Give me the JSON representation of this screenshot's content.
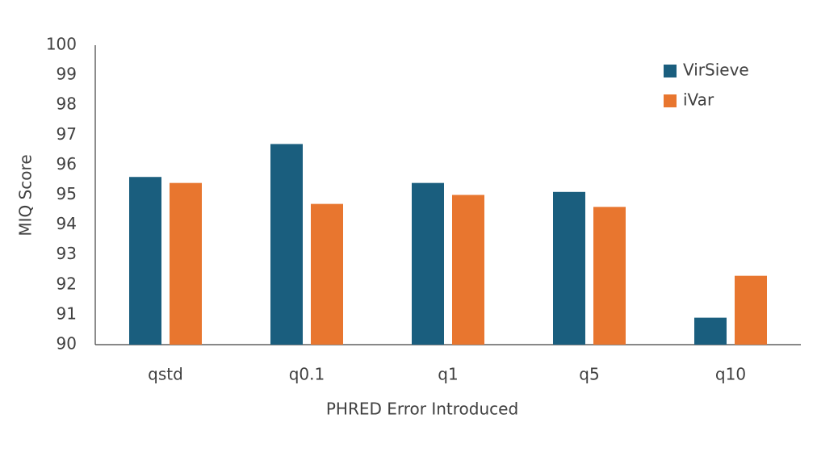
{
  "chart_data": {
    "type": "bar",
    "x_label": "PHRED Error Introduced",
    "y_label": "MIQ Score",
    "categories": [
      "qstd",
      "q0.1",
      "q1",
      "q5",
      "q10"
    ],
    "series": [
      {
        "name": "VirSieve",
        "color": "#1a5e7e",
        "values": [
          95.6,
          96.7,
          95.4,
          95.1,
          90.9
        ]
      },
      {
        "name": "iVar",
        "color": "#e8762f",
        "values": [
          95.4,
          94.7,
          95.0,
          94.6,
          92.3
        ]
      }
    ],
    "ylim": [
      90,
      100
    ],
    "yticks": [
      90,
      91,
      92,
      93,
      94,
      95,
      96,
      97,
      98,
      99,
      100
    ],
    "grid": false,
    "legend": "top-right"
  }
}
